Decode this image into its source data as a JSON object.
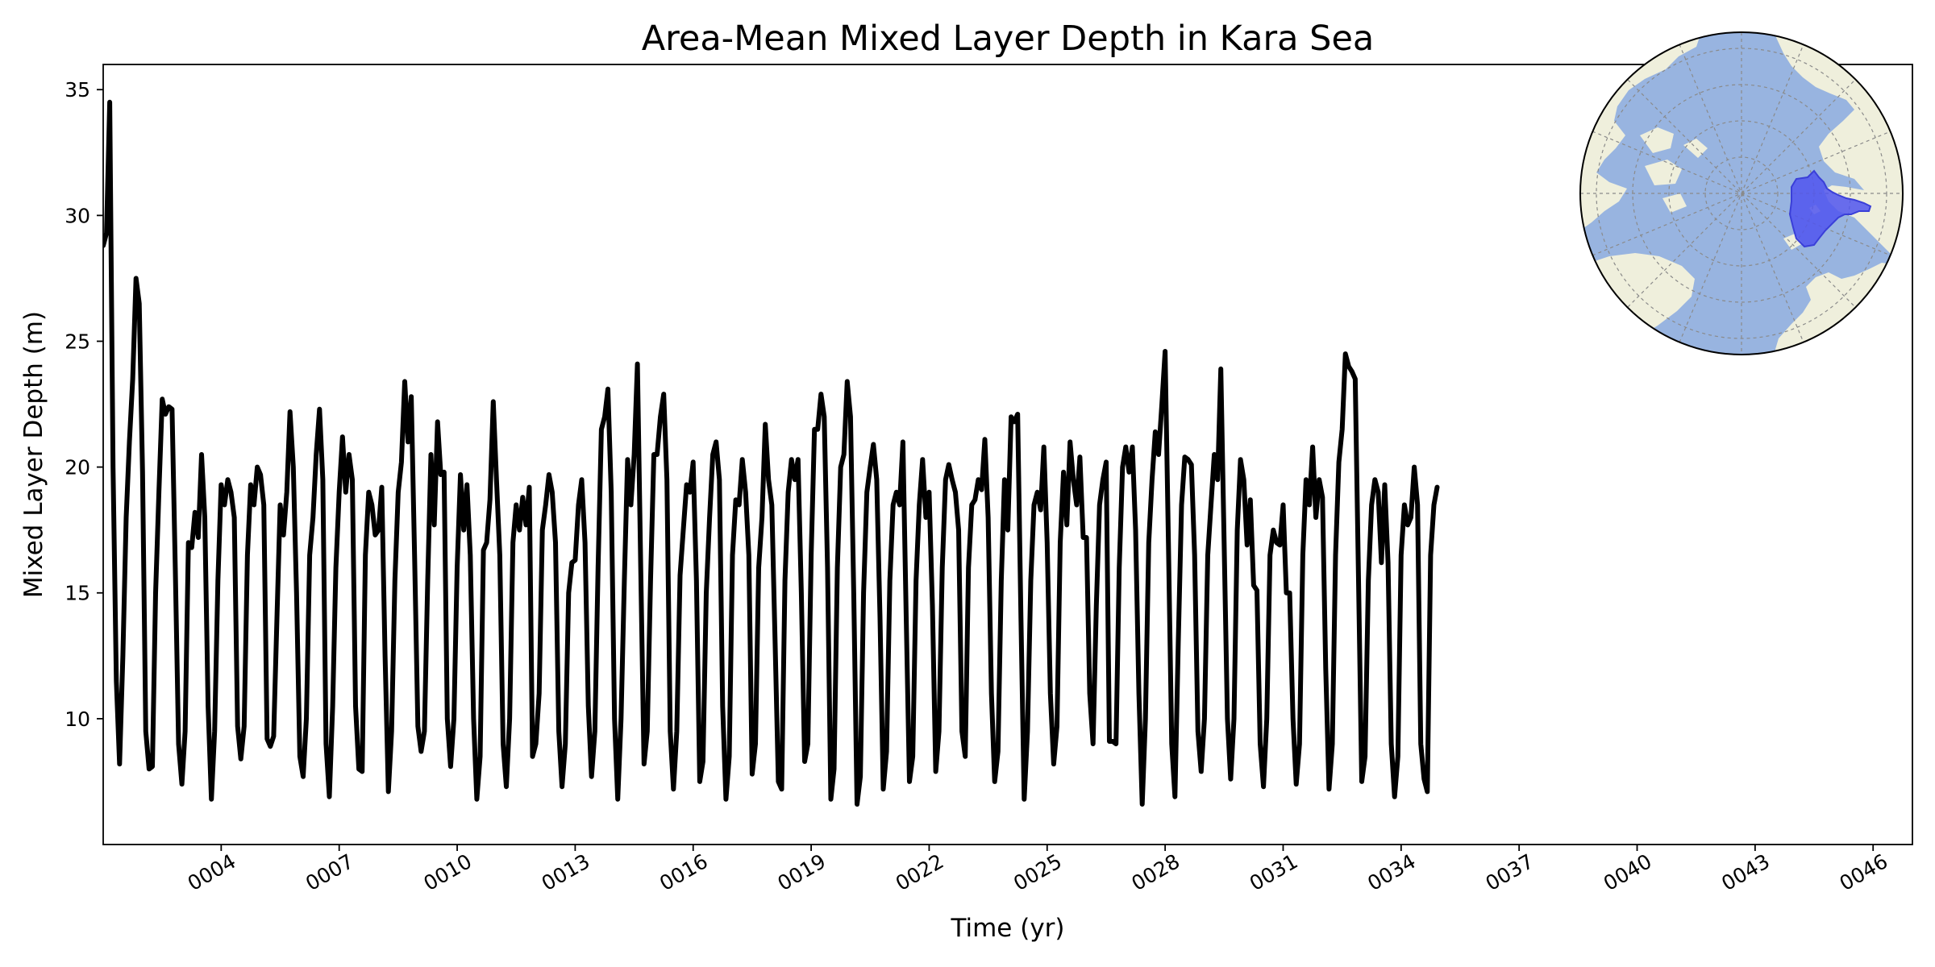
{
  "chart_data": {
    "type": "line",
    "title": "Area-Mean Mixed Layer Depth in Kara Sea",
    "xlabel": "Time (yr)",
    "ylabel": "Mixed Layer Depth (m)",
    "x_unit": "model year (months as fractional years)",
    "xlim": [
      1.0,
      47.0
    ],
    "ylim": [
      5.0,
      36.0
    ],
    "yticks": [
      10,
      15,
      20,
      25,
      30,
      35
    ],
    "xticks": [
      4,
      7,
      10,
      13,
      16,
      19,
      22,
      25,
      28,
      31,
      34,
      37,
      40,
      43,
      46
    ],
    "xtick_labels": [
      "0004",
      "0007",
      "0010",
      "0013",
      "0016",
      "0019",
      "0022",
      "0025",
      "0028",
      "0031",
      "0034",
      "0037",
      "0040",
      "0043",
      "0046"
    ],
    "grid": false,
    "legend": "none",
    "line_color": "#000000",
    "series": [
      {
        "x_start": 1.0,
        "x_step": 0.0833333,
        "values": [
          28.8,
          29.3,
          34.5,
          20.0,
          11.5,
          8.2,
          12.5,
          18.0,
          21.0,
          23.5,
          27.5,
          26.5,
          19.8,
          9.5,
          8.0,
          8.1,
          15.0,
          19.0,
          22.7,
          22.1,
          22.4,
          22.3,
          16.0,
          9.0,
          7.4,
          9.5,
          17.0,
          16.8,
          18.2,
          17.2,
          20.5,
          18.0,
          10.5,
          6.8,
          9.5,
          15.5,
          19.3,
          18.5,
          19.5,
          19.0,
          18.0,
          9.7,
          8.4,
          9.7,
          16.5,
          19.3,
          18.5,
          20.0,
          19.7,
          18.5,
          9.2,
          8.9,
          9.3,
          14.0,
          18.5,
          17.3,
          19.0,
          22.2,
          20.0,
          15.0,
          8.5,
          7.7,
          10.0,
          16.5,
          18.0,
          20.5,
          22.3,
          19.5,
          9.0,
          6.9,
          10.5,
          16.0,
          19.0,
          21.2,
          19.0,
          20.5,
          19.5,
          10.5,
          8.0,
          7.9,
          16.5,
          19.0,
          18.5,
          17.3,
          17.5,
          19.2,
          12.5,
          7.1,
          9.5,
          15.5,
          19.0,
          20.2,
          23.4,
          21.0,
          22.8,
          16.5,
          9.7,
          8.7,
          9.5,
          15.5,
          20.5,
          17.7,
          21.8,
          19.7,
          19.8,
          10.0,
          8.1,
          10.0,
          16.0,
          19.7,
          17.5,
          19.3,
          16.5,
          10.0,
          6.8,
          8.5,
          16.7,
          17.0,
          18.7,
          22.6,
          19.5,
          16.5,
          9.0,
          7.3,
          10.0,
          17.0,
          18.5,
          17.5,
          18.8,
          17.7,
          19.2,
          8.5,
          9.0,
          11.0,
          17.5,
          18.5,
          19.7,
          19.0,
          17.0,
          9.5,
          7.3,
          9.0,
          15.0,
          16.2,
          16.3,
          18.5,
          19.5,
          17.0,
          10.5,
          7.7,
          9.5,
          16.0,
          21.5,
          22.0,
          23.1,
          19.0,
          10.0,
          6.8,
          10.0,
          15.5,
          20.3,
          18.5,
          20.5,
          24.1,
          16.0,
          8.2,
          9.5,
          15.5,
          20.5,
          20.5,
          22.0,
          22.9,
          19.5,
          9.5,
          7.2,
          9.5,
          15.7,
          17.5,
          19.3,
          19.0,
          20.2,
          15.5,
          7.5,
          8.3,
          15.0,
          18.0,
          20.5,
          21.0,
          19.5,
          10.5,
          6.8,
          8.5,
          16.5,
          18.7,
          18.5,
          20.3,
          19.0,
          16.5,
          7.8,
          9.0,
          16.0,
          18.0,
          21.7,
          19.5,
          18.5,
          13.0,
          7.5,
          7.2,
          15.5,
          19.0,
          20.3,
          19.5,
          20.3,
          15.0,
          8.3,
          9.0,
          16.5,
          21.5,
          21.5,
          22.9,
          22.0,
          16.0,
          6.8,
          8.0,
          16.0,
          20.0,
          20.5,
          23.4,
          22.0,
          15.0,
          6.6,
          7.7,
          15.0,
          19.0,
          20.0,
          20.9,
          19.5,
          14.0,
          7.2,
          8.7,
          15.5,
          18.5,
          19.0,
          18.5,
          21.0,
          14.0,
          7.5,
          8.5,
          15.5,
          18.5,
          20.3,
          18.0,
          19.0,
          14.5,
          7.9,
          9.5,
          16.0,
          19.5,
          20.1,
          19.5,
          19.0,
          17.5,
          9.5,
          8.5,
          16.0,
          18.5,
          18.7,
          19.5,
          19.1,
          21.1,
          18.0,
          11.0,
          7.5,
          8.7,
          15.5,
          19.5,
          17.5,
          22.0,
          21.8,
          22.1,
          14.0,
          6.8,
          9.5,
          15.5,
          18.5,
          19.0,
          18.3,
          20.8,
          17.0,
          11.0,
          8.2,
          9.7,
          17.0,
          19.8,
          17.7,
          21.0,
          19.5,
          18.5,
          20.4,
          17.2,
          17.2,
          11.0,
          9.0,
          14.5,
          18.5,
          19.5,
          20.2,
          9.1,
          9.1,
          9.0,
          16.0,
          20.0,
          20.8,
          19.8,
          20.8,
          17.5,
          11.0,
          6.6,
          10.0,
          17.0,
          19.5,
          21.4,
          20.5,
          22.5,
          24.6,
          17.0,
          9.0,
          6.9,
          13.0,
          18.5,
          20.4,
          20.3,
          20.1,
          16.5,
          9.5,
          7.9,
          10.0,
          16.5,
          18.5,
          20.5,
          19.5,
          23.9,
          17.0,
          10.0,
          7.6,
          10.0,
          17.5,
          20.3,
          19.5,
          16.9,
          18.7,
          15.3,
          15.1,
          9.0,
          7.3,
          10.0,
          16.5,
          17.5,
          17.0,
          16.9,
          18.5,
          15.0,
          15.0,
          10.0,
          7.4,
          9.0,
          16.5,
          19.5,
          18.5,
          20.8,
          18.0,
          19.5,
          18.8,
          12.0,
          7.2,
          9.0,
          16.5,
          20.2,
          21.5,
          24.5,
          24.0,
          23.8,
          23.5,
          15.5,
          7.5,
          8.5,
          15.5,
          18.5,
          19.5,
          19.0,
          16.2,
          19.3,
          16.2,
          9.0,
          6.9,
          8.5,
          16.5,
          18.5,
          17.7,
          18.0,
          20.0,
          18.5,
          9.0,
          7.6,
          7.1,
          16.5,
          18.5,
          19.2
        ]
      }
    ]
  },
  "map_colors": {
    "ocean": "#98b4e0",
    "land": "#efefdc",
    "highlight": "#5055ee",
    "gridline": "#8a8a8a"
  }
}
